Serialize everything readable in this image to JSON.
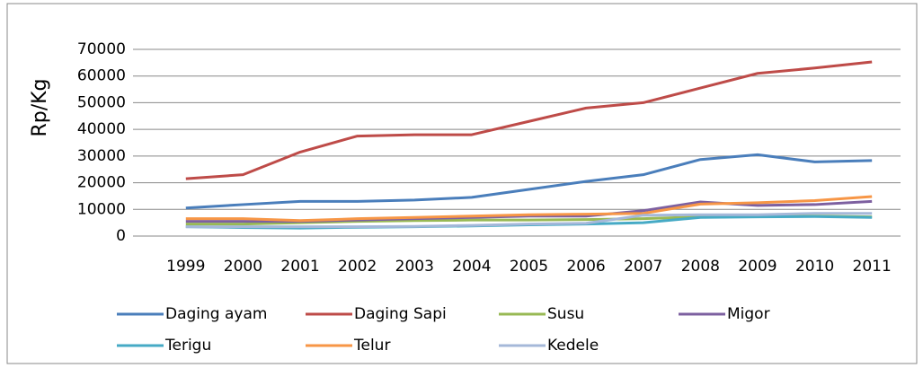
{
  "chart_data": {
    "type": "line",
    "y_label": "Rp/Kg",
    "categories": [
      "1999",
      "2000",
      "2001",
      "2002",
      "2003",
      "2004",
      "2005",
      "2006",
      "2007",
      "2008",
      "2009",
      "2010",
      "2011"
    ],
    "series": [
      {
        "name": "Daging ayam",
        "color": "#4a7ebb",
        "values": [
          10500,
          11800,
          13000,
          13000,
          13500,
          14500,
          17500,
          20500,
          23000,
          28700,
          30500,
          27800,
          28300
        ]
      },
      {
        "name": "Daging Sapi",
        "color": "#be4b48",
        "values": [
          21500,
          23000,
          31500,
          37500,
          38000,
          38000,
          43000,
          48000,
          50000,
          55500,
          61000,
          63000,
          65300
        ]
      },
      {
        "name": "Susu",
        "color": "#98b954",
        "values": [
          4500,
          4500,
          5000,
          5500,
          5800,
          6000,
          6000,
          6200,
          6500,
          7200,
          7500,
          7500,
          7200
        ]
      },
      {
        "name": "Migor",
        "color": "#7d60a0",
        "values": [
          5500,
          5500,
          5500,
          6000,
          6500,
          7000,
          7500,
          7500,
          9500,
          12800,
          11500,
          11800,
          13000
        ]
      },
      {
        "name": "Terigu",
        "color": "#46aac5",
        "values": [
          3500,
          3200,
          3000,
          3300,
          3500,
          3800,
          4200,
          4500,
          5000,
          7000,
          7200,
          7300,
          7000
        ]
      },
      {
        "name": "Telur",
        "color": "#f79646",
        "values": [
          6500,
          6500,
          5800,
          6500,
          7000,
          7500,
          8000,
          8200,
          8500,
          12000,
          12500,
          13300,
          14800
        ]
      },
      {
        "name": "Kedele",
        "color": "#a5b8d9",
        "values": [
          3500,
          3500,
          3500,
          3500,
          3600,
          4000,
          4500,
          4800,
          7800,
          8000,
          8000,
          8500,
          8500
        ]
      }
    ],
    "ylim": [
      0,
      70000
    ],
    "yticks": [
      0,
      10000,
      20000,
      30000,
      40000,
      50000,
      60000,
      70000
    ],
    "grid": true
  }
}
